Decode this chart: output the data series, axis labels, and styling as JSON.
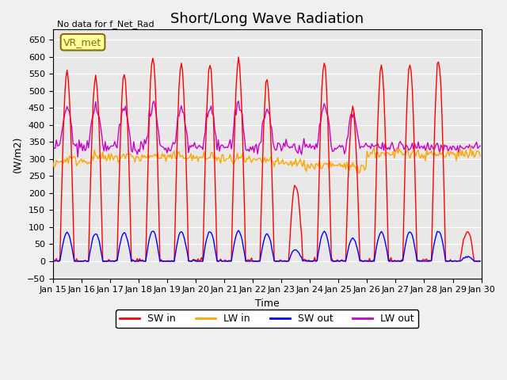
{
  "title": "Short/Long Wave Radiation",
  "xlabel": "Time",
  "ylabel": "(W/m2)",
  "ylim": [
    -50,
    680
  ],
  "xlim_max": 360,
  "yticks": [
    -50,
    0,
    50,
    100,
    150,
    200,
    250,
    300,
    350,
    400,
    450,
    500,
    550,
    600,
    650
  ],
  "n_days": 15,
  "start_day": 15,
  "day_peaks": [
    560,
    545,
    550,
    600,
    580,
    580,
    590,
    530,
    225,
    585,
    445,
    575,
    580,
    590,
    90
  ],
  "colors": {
    "sw_in": "#FF0000",
    "lw_in": "#FFA500",
    "sw_out": "#0000FF",
    "lw_out": "#CC00CC"
  },
  "legend_labels": [
    "SW in",
    "LW in",
    "SW out",
    "LW out"
  ],
  "annotation_text": "No data for f_Net_Rad",
  "box_label": "VR_met",
  "fig_facecolor": "#F0F0F0",
  "ax_facecolor": "#E8E8E8",
  "grid_color": "#FFFFFF",
  "title_fontsize": 13,
  "label_fontsize": 9,
  "tick_fontsize": 8,
  "linewidth": 1.0
}
